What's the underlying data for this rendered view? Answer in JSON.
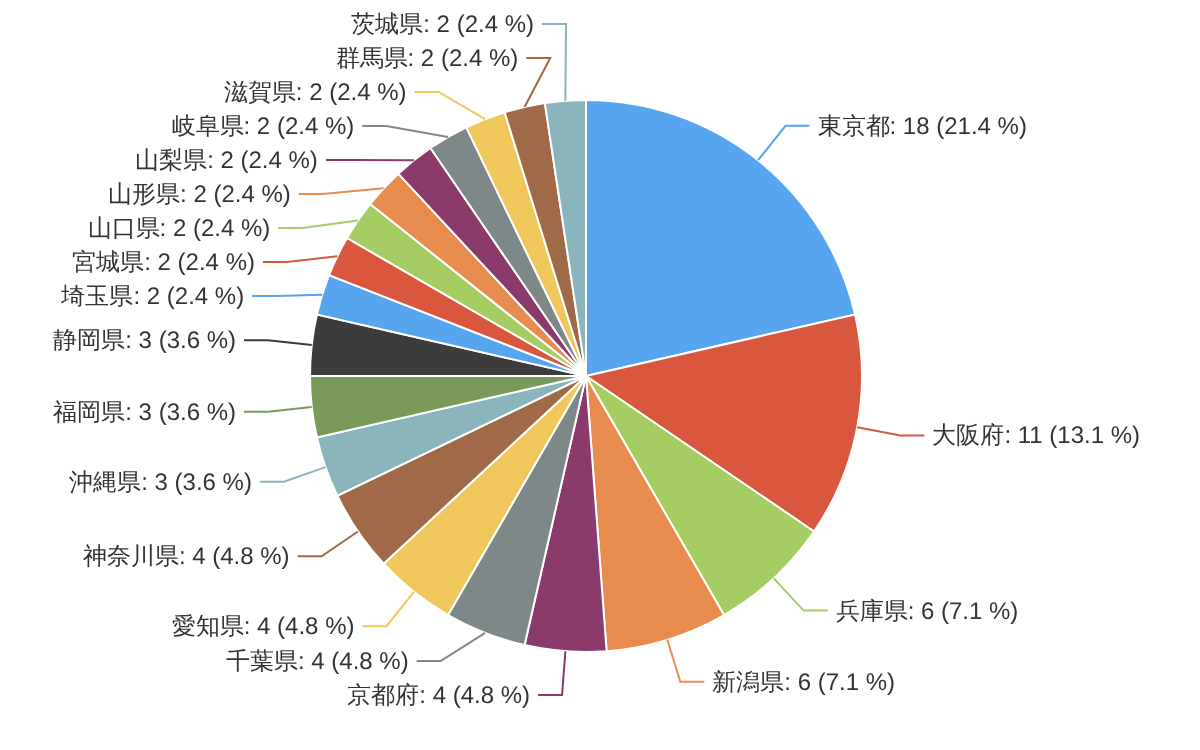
{
  "chart_data": {
    "type": "pie",
    "categories": [
      "東京都",
      "大阪府",
      "兵庫県",
      "新潟県",
      "京都府",
      "千葉県",
      "愛知県",
      "神奈川県",
      "沖縄県",
      "福岡県",
      "静岡県",
      "埼玉県",
      "宮城県",
      "山口県",
      "山形県",
      "山梨県",
      "岐阜県",
      "滋賀県",
      "群馬県",
      "茨城県"
    ],
    "values": [
      18,
      11,
      6,
      6,
      4,
      4,
      4,
      4,
      3,
      3,
      3,
      2,
      2,
      2,
      2,
      2,
      2,
      2,
      2,
      2
    ],
    "value_labels": [
      "18 (21.4 %)",
      "11 (13.1 %)",
      "6 (7.1 %)",
      "6 (7.1 %)",
      "4 (4.8 %)",
      "4 (4.8 %)",
      "4 (4.8 %)",
      "4 (4.8 %)",
      "3 (3.6 %)",
      "3 (3.6 %)",
      "3 (3.6 %)",
      "2 (2.4 %)",
      "2 (2.4 %)",
      "2 (2.4 %)",
      "2 (2.4 %)",
      "2 (2.4 %)",
      "2 (2.4 %)",
      "2 (2.4 %)",
      "2 (2.4 %)",
      "2 (2.4 %)"
    ],
    "colors": [
      "#58a5ef",
      "#d9573f",
      "#a5cd63",
      "#e88b4f",
      "#8b3a6c",
      "#7f8888",
      "#f0c75a",
      "#a06a48",
      "#8ab5bd",
      "#7a9a5a",
      "#3c3c3c",
      "#58a5ef",
      "#d9573f",
      "#a5cd63",
      "#e88b4f",
      "#8b3a6c",
      "#7f8888",
      "#f0c75a",
      "#a06a48",
      "#8ab5bd"
    ]
  }
}
